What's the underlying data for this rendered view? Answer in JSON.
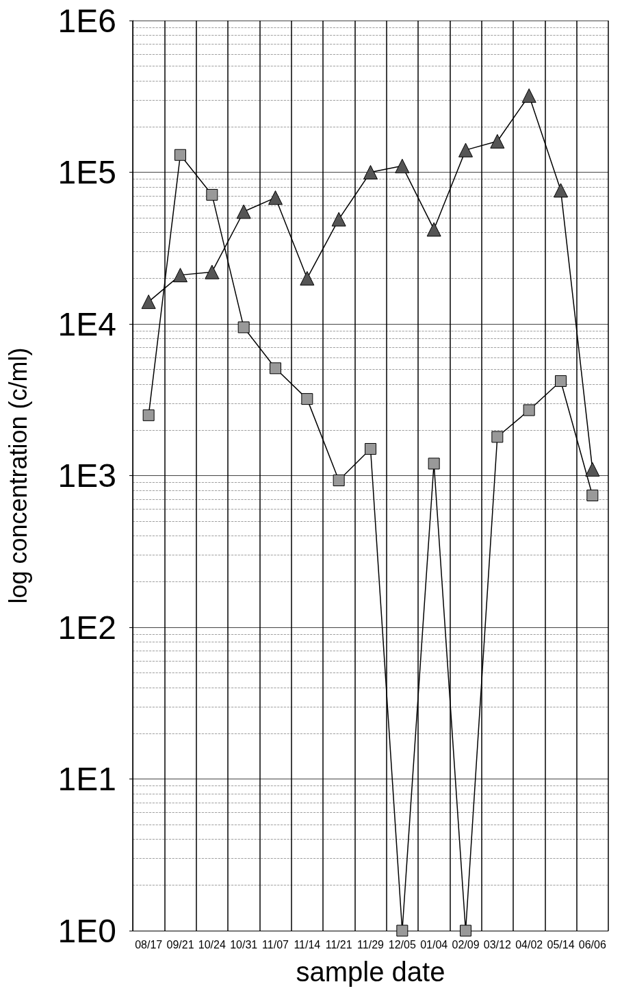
{
  "chart_data": {
    "type": "line",
    "xlabel": "sample date",
    "ylabel": "log concentration (c/ml)",
    "categories": [
      "08/17",
      "09/21",
      "10/24",
      "10/31",
      "11/07",
      "11/14",
      "11/21",
      "11/29",
      "12/05",
      "01/04",
      "02/09",
      "03/12",
      "04/02",
      "05/14",
      "06/06"
    ],
    "series": [
      {
        "color": "#555555",
        "marker": "triangle",
        "values": [
          14000,
          21000,
          22000,
          55000,
          68000,
          20000,
          49000,
          100000,
          110000,
          42000,
          140000,
          160000,
          320000,
          76000,
          1100
        ]
      },
      {
        "color": "#999999",
        "marker": "square",
        "values": [
          2500,
          130000,
          71000,
          9500,
          5100,
          3200,
          930,
          1500,
          1,
          1200,
          1,
          1800,
          2700,
          4200,
          740
        ]
      }
    ],
    "log": "y",
    "ylim": [
      1,
      1000000
    ],
    "yticks": [
      {
        "value": 1,
        "label": "1E0"
      },
      {
        "value": 10,
        "label": "1E1"
      },
      {
        "value": 100,
        "label": "1E2"
      },
      {
        "value": 1000,
        "label": "1E3"
      },
      {
        "value": 10000,
        "label": "1E4"
      },
      {
        "value": 100000,
        "label": "1E5"
      },
      {
        "value": 1000000,
        "label": "1E6"
      }
    ],
    "grid": true
  }
}
